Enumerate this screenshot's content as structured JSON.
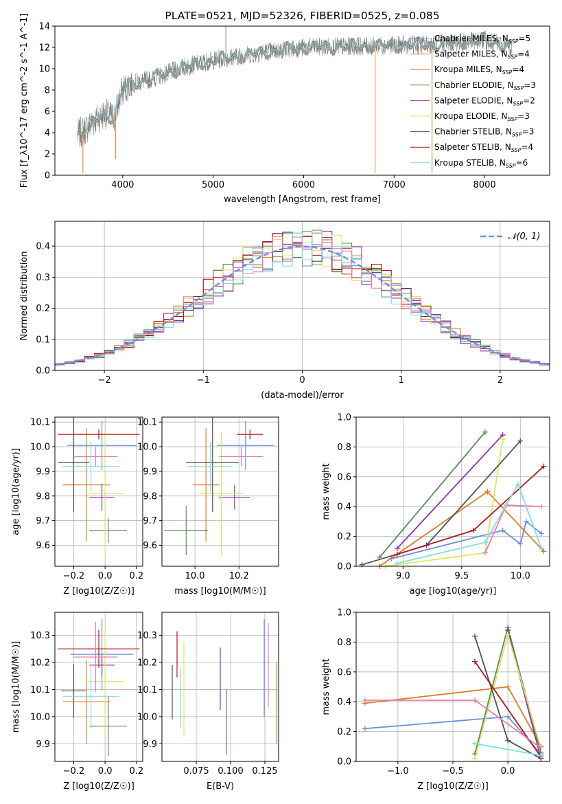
{
  "palette": [
    "#6a8fdc",
    "#e07b25",
    "#e07b25",
    "#5a8a5a",
    "#9030b0",
    "#d8e860",
    "#505050",
    "#b01818",
    "#80dce4"
  ],
  "chart_data": [
    {
      "id": "spectrum",
      "type": "line",
      "title": "PLATE=0521, MJD=52326, FIBERID=0525, z=0.085",
      "xlabel": "wavelength [Angstrom, rest frame]",
      "ylabel": "Flux [f_λ10^-17 erg cm^-2 s^-1 A^-1]",
      "xlim": [
        3250,
        8720
      ],
      "ylim": [
        0,
        14
      ],
      "xticks": [
        4000,
        5000,
        6000,
        7000,
        8000
      ],
      "yticks": [
        0,
        2,
        4,
        6,
        8,
        10,
        12,
        14
      ],
      "grid": false,
      "legend_position": "top-right",
      "data_color": "#808080",
      "data_anchors": {
        "x": [
          3500,
          3600,
          3700,
          3800,
          3900,
          4000,
          4100,
          4300,
          4500,
          4700,
          5000,
          5300,
          5600,
          6000,
          6500,
          7000,
          7500,
          8000,
          8300
        ],
        "y": [
          3.8,
          4.4,
          5.2,
          5.8,
          5.4,
          8.0,
          8.6,
          9.0,
          9.6,
          10.2,
          10.8,
          11.2,
          11.6,
          12.0,
          12.1,
          12.2,
          12.3,
          12.7,
          12.0
        ]
      },
      "spikes": [
        {
          "x": 5140,
          "ytop": 14
        },
        {
          "x": 3560,
          "ytop": 0.2
        },
        {
          "x": 3920,
          "ytop": 1.5
        },
        {
          "x": 6790,
          "ytop": 0.2
        },
        {
          "x": 7420,
          "ytop": 0.2
        }
      ],
      "legend": [
        {
          "label": "Chabrier MILES, N",
          "sub": "SSP",
          "suffix": "=5",
          "color": "#6a8fdc"
        },
        {
          "label": "Salpeter MILES, N",
          "sub": "SSP",
          "suffix": "=4",
          "color": "#e07b25"
        },
        {
          "label": "Kroupa MILES, N",
          "sub": "SSP",
          "suffix": "=4",
          "color": "#e07b25"
        },
        {
          "label": "Chabrier ELODIE, N",
          "sub": "SSP",
          "suffix": "=3",
          "color": "#5a8a5a"
        },
        {
          "label": "Salpeter ELODIE, N",
          "sub": "SSP",
          "suffix": "=2",
          "color": "#9030b0"
        },
        {
          "label": "Kroupa ELODIE, N",
          "sub": "SSP",
          "suffix": "=3",
          "color": "#d8e860"
        },
        {
          "label": "Chabrier STELIB, N",
          "sub": "SSP",
          "suffix": "=3",
          "color": "#505050"
        },
        {
          "label": "Salpeter STELIB, N",
          "sub": "SSP",
          "suffix": "=4",
          "color": "#b01818"
        },
        {
          "label": "Kroupa STELIB, N",
          "sub": "SSP",
          "suffix": "=6",
          "color": "#80dce4"
        }
      ]
    },
    {
      "id": "residuals",
      "type": "histogram",
      "xlabel": "(data-model)/error",
      "ylabel": "Normed distribution",
      "xlim": [
        -2.5,
        2.5
      ],
      "ylim": [
        0,
        0.48
      ],
      "xticks": [
        -2,
        -1,
        0,
        1,
        2
      ],
      "xtick_labels": [
        "−2",
        "−1",
        "0",
        "1",
        "2"
      ],
      "yticks": [
        0.0,
        0.1,
        0.2,
        0.3,
        0.4
      ],
      "ytick_labels": [
        "0.0",
        "0.1",
        "0.2",
        "0.3",
        "0.4"
      ],
      "grid": true,
      "bin_width": 0.1,
      "legend": [
        {
          "label": "𝒩(0, 1)",
          "color": "#6a8fdc",
          "style": "dashed"
        }
      ],
      "legend_position": "top-right"
    },
    {
      "id": "age-vs-Z",
      "type": "errorbar",
      "xlabel": "Z [log10(Z/Z☉)]",
      "ylabel": "age [log10(age/yr)]",
      "xlim": [
        -0.32,
        0.24
      ],
      "ylim": [
        9.515,
        10.12
      ],
      "xticks": [
        -0.2,
        0.0,
        0.2
      ],
      "xtick_labels": [
        "−0.2",
        "0.0",
        "0.2"
      ],
      "yticks": [
        9.6,
        9.7,
        9.8,
        9.9,
        10.0,
        10.1
      ],
      "ytick_labels": [
        "9.6",
        "9.7",
        "9.8",
        "9.9",
        "10.0",
        "10.1"
      ],
      "grid": true,
      "points": [
        {
          "x": -0.02,
          "xerr": 0.22,
          "y": 10.005,
          "yerr": 0.1,
          "color": "#6a8fdc"
        },
        {
          "x": -0.12,
          "xerr": 0.15,
          "y": 9.845,
          "yerr": 0.23,
          "color": "#e07b25"
        },
        {
          "x": 0.02,
          "xerr": 0.12,
          "y": 9.66,
          "yerr": 0.05,
          "color": "#5a8a5a"
        },
        {
          "x": -0.02,
          "xerr": 0.08,
          "y": 9.795,
          "yerr": 0.055,
          "color": "#9030b0"
        },
        {
          "x": 0.0,
          "xerr": 0.12,
          "y": 9.81,
          "yerr": 0.25,
          "color": "#d8e860"
        },
        {
          "x": -0.2,
          "xerr": 0.1,
          "y": 9.935,
          "yerr": 0.2,
          "color": "#505050"
        },
        {
          "x": -0.04,
          "xerr": 0.26,
          "y": 10.05,
          "yerr": 0.02,
          "color": "#b01818"
        },
        {
          "x": -0.06,
          "xerr": 0.14,
          "y": 9.96,
          "yerr": 0.04,
          "color": "#e87cb0"
        },
        {
          "x": -0.09,
          "xerr": 0.18,
          "y": 9.92,
          "yerr": 0.1,
          "color": "#80dce4"
        }
      ]
    },
    {
      "id": "age-vs-mass",
      "type": "errorbar",
      "xlabel": "mass [log10(M/M☉)]",
      "ylabel": "",
      "xlim": [
        9.85,
        10.38
      ],
      "ylim": [
        9.515,
        10.12
      ],
      "xticks": [
        10.0,
        10.2
      ],
      "xtick_labels": [
        "10.0",
        "10.2"
      ],
      "yticks": [
        9.6,
        9.7,
        9.8,
        9.9,
        10.0,
        10.1
      ],
      "ytick_labels": [
        "9.6",
        "9.7",
        "9.8",
        "9.9",
        "10.0",
        "10.1"
      ],
      "grid": true,
      "points": [
        {
          "x": 10.23,
          "xerr": 0.13,
          "y": 10.005,
          "yerr": 0.1,
          "color": "#6a8fdc"
        },
        {
          "x": 10.05,
          "xerr": 0.06,
          "y": 9.845,
          "yerr": 0.23,
          "color": "#e07b25"
        },
        {
          "x": 9.96,
          "xerr": 0.1,
          "y": 9.66,
          "yerr": 0.1,
          "color": "#5a8a5a"
        },
        {
          "x": 10.18,
          "xerr": 0.07,
          "y": 9.795,
          "yerr": 0.05,
          "color": "#9030b0"
        },
        {
          "x": 10.12,
          "xerr": 0.1,
          "y": 9.81,
          "yerr": 0.25,
          "color": "#d8e860"
        },
        {
          "x": 10.08,
          "xerr": 0.12,
          "y": 9.935,
          "yerr": 0.2,
          "color": "#505050"
        },
        {
          "x": 10.25,
          "xerr": 0.06,
          "y": 10.05,
          "yerr": 0.02,
          "color": "#b01818"
        },
        {
          "x": 10.21,
          "xerr": 0.1,
          "y": 9.96,
          "yerr": 0.04,
          "color": "#e87cb0"
        },
        {
          "x": 10.07,
          "xerr": 0.1,
          "y": 9.92,
          "yerr": 0.1,
          "color": "#80dce4"
        }
      ]
    },
    {
      "id": "mass-weight-vs-age",
      "type": "line",
      "xlabel": "age [log10(age/yr)]",
      "ylabel": "mass weight",
      "xlim": [
        8.6,
        10.25
      ],
      "ylim": [
        0,
        1
      ],
      "xticks": [
        9.0,
        9.5,
        10.0
      ],
      "xtick_labels": [
        "9.0",
        "9.5",
        "10.0"
      ],
      "yticks": [
        0,
        0.2,
        0.4,
        0.6,
        0.8,
        1.0
      ],
      "ytick_labels": [
        "0.0",
        "0.2",
        "0.4",
        "0.6",
        "0.8",
        "1.0"
      ],
      "grid": true,
      "series": [
        {
          "color": "#6a8fdc",
          "x": [
            8.9,
            9.85,
            10.0,
            10.05,
            10.18
          ],
          "y": [
            0.05,
            0.24,
            0.15,
            0.3,
            0.22
          ]
        },
        {
          "color": "#e07b25",
          "x": [
            8.8,
            9.72,
            10.2
          ],
          "y": [
            0.0,
            0.5,
            0.1
          ]
        },
        {
          "color": "#5a8a5a",
          "x": [
            8.8,
            9.7
          ],
          "y": [
            0.06,
            0.9
          ]
        },
        {
          "color": "#9030b0",
          "x": [
            8.95,
            9.85
          ],
          "y": [
            0.12,
            0.88
          ]
        },
        {
          "color": "#d8e860",
          "x": [
            8.85,
            9.7,
            9.85
          ],
          "y": [
            0.0,
            0.09,
            0.85
          ]
        },
        {
          "color": "#505050",
          "x": [
            8.65,
            9.2,
            10.0
          ],
          "y": [
            0.01,
            0.14,
            0.84
          ]
        },
        {
          "color": "#b01818",
          "x": [
            8.95,
            9.6,
            10.2
          ],
          "y": [
            0.08,
            0.24,
            0.67
          ]
        },
        {
          "color": "#e87cb0",
          "x": [
            9.7,
            9.88,
            10.18
          ],
          "y": [
            0.09,
            0.41,
            0.4
          ]
        },
        {
          "color": "#80dce4",
          "x": [
            8.95,
            9.7,
            9.98,
            10.18
          ],
          "y": [
            0.02,
            0.16,
            0.55,
            0.12
          ]
        }
      ]
    },
    {
      "id": "mass-vs-Z",
      "type": "errorbar",
      "xlabel": "Z [log10(Z/Z☉)]",
      "ylabel": "mass [log10(M/M☉)]",
      "xlim": [
        -0.32,
        0.24
      ],
      "ylim": [
        9.835,
        10.385
      ],
      "xticks": [
        -0.2,
        0.0,
        0.2
      ],
      "xtick_labels": [
        "−0.2",
        "0.0",
        "0.2"
      ],
      "yticks": [
        9.9,
        10.0,
        10.1,
        10.2,
        10.3
      ],
      "ytick_labels": [
        "9.9",
        "10.0",
        "10.1",
        "10.2",
        "10.3"
      ],
      "grid": true,
      "points": [
        {
          "x": -0.02,
          "xerr": 0.2,
          "y": 10.23,
          "yerr": 0.13,
          "color": "#6a8fdc"
        },
        {
          "x": -0.12,
          "xerr": 0.15,
          "y": 10.055,
          "yerr": 0.155,
          "color": "#e07b25"
        },
        {
          "x": 0.02,
          "xerr": 0.12,
          "y": 9.965,
          "yerr": 0.11,
          "color": "#5a8a5a"
        },
        {
          "x": -0.02,
          "xerr": 0.08,
          "y": 10.19,
          "yerr": 0.04,
          "color": "#9030b0"
        },
        {
          "x": 0.0,
          "xerr": 0.12,
          "y": 10.13,
          "yerr": 0.2,
          "color": "#d8e860"
        },
        {
          "x": -0.2,
          "xerr": 0.08,
          "y": 10.095,
          "yerr": 0.1,
          "color": "#505050"
        },
        {
          "x": -0.04,
          "xerr": 0.26,
          "y": 10.25,
          "yerr": 0.07,
          "color": "#b01818"
        },
        {
          "x": -0.06,
          "xerr": 0.14,
          "y": 10.22,
          "yerr": 0.13,
          "color": "#e87cb0"
        },
        {
          "x": -0.09,
          "xerr": 0.18,
          "y": 10.075,
          "yerr": 0.12,
          "color": "#80dce4"
        }
      ]
    },
    {
      "id": "mass-vs-ebv",
      "type": "errorbar",
      "xlabel": "E(B-V)",
      "ylabel": "",
      "xlim": [
        0.05,
        0.135
      ],
      "ylim": [
        9.835,
        10.385
      ],
      "xticks": [
        0.075,
        0.1,
        0.125
      ],
      "xtick_labels": [
        "0.075",
        "0.100",
        "0.125"
      ],
      "yticks": [
        9.9,
        10.0,
        10.1,
        10.2,
        10.3
      ],
      "ytick_labels": [
        "9.9",
        "10.0",
        "10.1",
        "10.2",
        "10.3"
      ],
      "grid": true,
      "points": [
        {
          "x": 0.1245,
          "y": 10.18,
          "yerr": 0.18,
          "color": "#6a8fdc"
        },
        {
          "x": 0.1335,
          "y": 10.05,
          "yerr": 0.15,
          "color": "#e07b25"
        },
        {
          "x": 0.097,
          "y": 9.98,
          "yerr": 0.12,
          "color": "#5a8a5a"
        },
        {
          "x": 0.0925,
          "y": 10.14,
          "yerr": 0.115,
          "color": "#9030b0"
        },
        {
          "x": 0.066,
          "y": 10.1,
          "yerr": 0.175,
          "color": "#d8e860"
        },
        {
          "x": 0.0575,
          "y": 10.09,
          "yerr": 0.1,
          "color": "#505050"
        },
        {
          "x": 0.061,
          "y": 10.23,
          "yerr": 0.085,
          "color": "#b01818"
        },
        {
          "x": 0.1275,
          "y": 10.19,
          "yerr": 0.155,
          "color": "#e87cb0"
        },
        {
          "x": 0.0635,
          "y": 10.07,
          "yerr": 0.11,
          "color": "#80dce4"
        }
      ]
    },
    {
      "id": "mass-weight-vs-Z",
      "type": "line",
      "xlabel": "Z [log10(Z/Z☉)]",
      "ylabel": "mass weight",
      "xlim": [
        -1.38,
        0.38
      ],
      "ylim": [
        0,
        1
      ],
      "xticks": [
        -1.0,
        -0.5,
        0.0
      ],
      "xtick_labels": [
        "−1.0",
        "−0.5",
        "0.0"
      ],
      "yticks": [
        0,
        0.2,
        0.4,
        0.6,
        0.8,
        1.0
      ],
      "ytick_labels": [
        "0.0",
        "0.2",
        "0.4",
        "0.6",
        "0.8",
        "1.0"
      ],
      "grid": true,
      "series": [
        {
          "color": "#6a8fdc",
          "x": [
            -1.3,
            0.0,
            0.3
          ],
          "y": [
            0.22,
            0.3,
            0.05
          ]
        },
        {
          "color": "#e07b25",
          "x": [
            -1.3,
            0.0,
            0.3
          ],
          "y": [
            0.39,
            0.5,
            0.1
          ]
        },
        {
          "color": "#5a8a5a",
          "x": [
            -0.3,
            0.0,
            0.3
          ],
          "y": [
            0.05,
            0.9,
            0.06
          ]
        },
        {
          "color": "#9030b0",
          "x": [
            0.0,
            0.3
          ],
          "y": [
            0.88,
            0.02
          ]
        },
        {
          "color": "#d8e860",
          "x": [
            -0.3,
            0.0,
            0.3
          ],
          "y": [
            0.02,
            0.85,
            0.09
          ]
        },
        {
          "color": "#505050",
          "x": [
            -0.3,
            0.0,
            0.3
          ],
          "y": [
            0.84,
            0.14,
            0.02
          ]
        },
        {
          "color": "#b01818",
          "x": [
            -0.3,
            0.3
          ],
          "y": [
            0.67,
            0.03
          ]
        },
        {
          "color": "#e87cb0",
          "x": [
            -1.3,
            -0.3,
            0.3
          ],
          "y": [
            0.41,
            0.41,
            0.09
          ]
        },
        {
          "color": "#80dce4",
          "x": [
            -0.3,
            0.3
          ],
          "y": [
            0.12,
            0.04
          ]
        }
      ]
    }
  ]
}
